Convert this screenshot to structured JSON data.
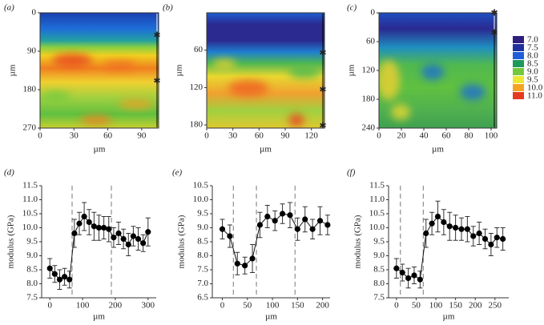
{
  "chart_data": [
    {
      "type": "heatmap",
      "panel": "(a)",
      "xlabel": "µm",
      "ylabel": "µm",
      "xlim": [
        0,
        105
      ],
      "xticks": [
        0,
        30,
        60,
        90
      ],
      "ylim": [
        270,
        0
      ],
      "yticks": [
        0,
        90,
        180,
        270
      ]
    },
    {
      "type": "heatmap",
      "panel": "(b)",
      "xlabel": "µm",
      "ylabel": "µm",
      "xlim": [
        0,
        135
      ],
      "xticks": [
        0,
        30,
        60,
        90,
        120
      ],
      "ylim": [
        185,
        0
      ],
      "yticks": [
        60,
        120,
        180
      ]
    },
    {
      "type": "heatmap",
      "panel": "(c)",
      "xlabel": "µm",
      "ylabel": "µm",
      "xlim": [
        0,
        105
      ],
      "xticks": [
        0,
        20,
        40,
        60,
        80,
        100
      ],
      "ylim": [
        240,
        0
      ],
      "yticks": [
        0,
        60,
        120,
        180,
        240
      ],
      "colorbar": [
        {
          "label": "7.0",
          "color": "#2e1f7e"
        },
        {
          "label": "7.5",
          "color": "#20309e"
        },
        {
          "label": "8.0",
          "color": "#1f5ed8"
        },
        {
          "label": "8.5",
          "color": "#1d9a5a"
        },
        {
          "label": "9.0",
          "color": "#74c83a"
        },
        {
          "label": "9.5",
          "color": "#ece832"
        },
        {
          "label": "10.0",
          "color": "#f4a422"
        },
        {
          "label": "11.0",
          "color": "#e63a1e"
        }
      ]
    },
    {
      "type": "line",
      "panel": "(d)",
      "xlabel": "µm",
      "ylabel": "modulus (GPa)",
      "xlim": [
        -25,
        325
      ],
      "xticks": [
        0,
        100,
        200,
        300
      ],
      "ylim": [
        7.5,
        11.5
      ],
      "yticks": [
        {
          "value": 7.5,
          "label": "7.5"
        },
        {
          "value": 8,
          "label": "8.0"
        },
        {
          "value": 8.5,
          "label": "8.5"
        },
        {
          "value": 9,
          "label": "9.0"
        },
        {
          "value": 9.5,
          "label": "9.5"
        },
        {
          "value": 10,
          "label": "10.0"
        },
        {
          "value": 10.5,
          "label": "10.5"
        },
        {
          "value": 11,
          "label": "11.0"
        },
        {
          "value": 11.5,
          "label": "11.5"
        }
      ],
      "vlines": [
        68,
        188
      ],
      "x": [
        0,
        15,
        30,
        45,
        60,
        75,
        90,
        105,
        120,
        135,
        150,
        165,
        180,
        195,
        210,
        225,
        240,
        255,
        270,
        285,
        300
      ],
      "values": [
        8.55,
        8.35,
        8.15,
        8.25,
        8.15,
        9.8,
        10.15,
        10.4,
        10.2,
        10.05,
        10.0,
        10.0,
        9.95,
        9.65,
        9.8,
        9.6,
        9.4,
        9.7,
        9.6,
        9.45,
        9.85
      ],
      "errors": [
        0.35,
        0.3,
        0.35,
        0.3,
        0.3,
        0.5,
        0.4,
        0.5,
        0.45,
        0.5,
        0.45,
        0.4,
        0.45,
        0.35,
        0.4,
        0.35,
        0.4,
        0.35,
        0.4,
        0.3,
        0.5
      ]
    },
    {
      "type": "line",
      "panel": "(e)",
      "xlabel": "µm",
      "ylabel": "modulus (GPa)",
      "xlim": [
        -20,
        215
      ],
      "xticks": [
        0,
        50,
        100,
        150,
        200
      ],
      "ylim": [
        6.5,
        10.5
      ],
      "yticks": [
        {
          "value": 6.5,
          "label": "6.5"
        },
        {
          "value": 7,
          "label": "7.0"
        },
        {
          "value": 7.5,
          "label": "7.5"
        },
        {
          "value": 8,
          "label": "8.0"
        },
        {
          "value": 8.5,
          "label": "8.5"
        },
        {
          "value": 9,
          "label": "9.0"
        },
        {
          "value": 9.5,
          "label": "9.5"
        },
        {
          "value": 10,
          "label": "10.0"
        },
        {
          "value": 10.5,
          "label": "10.5"
        }
      ],
      "vlines": [
        22,
        68,
        145
      ],
      "x": [
        0,
        15,
        30,
        45,
        60,
        75,
        90,
        105,
        120,
        135,
        150,
        165,
        180,
        195,
        210
      ],
      "values": [
        8.95,
        8.7,
        7.72,
        7.65,
        7.9,
        9.1,
        9.4,
        9.25,
        9.5,
        9.45,
        8.95,
        9.3,
        8.95,
        9.25,
        9.1
      ],
      "errors": [
        0.35,
        0.4,
        0.4,
        0.3,
        0.5,
        0.45,
        0.4,
        0.35,
        0.35,
        0.45,
        0.4,
        0.45,
        0.35,
        0.5,
        0.35
      ]
    },
    {
      "type": "line",
      "panel": "(f)",
      "xlabel": "µm",
      "ylabel": "modulus (GPa)",
      "xlim": [
        -20,
        285
      ],
      "xticks": [
        0,
        50,
        100,
        150,
        200,
        250
      ],
      "ylim": [
        7.5,
        11.5
      ],
      "yticks": [
        {
          "value": 7.5,
          "label": "7.5"
        },
        {
          "value": 8,
          "label": "8.0"
        },
        {
          "value": 8.5,
          "label": "8.5"
        },
        {
          "value": 9,
          "label": "9.0"
        },
        {
          "value": 9.5,
          "label": "9.5"
        },
        {
          "value": 10,
          "label": "10.0"
        },
        {
          "value": 10.5,
          "label": "10.5"
        },
        {
          "value": 11,
          "label": "11.0"
        },
        {
          "value": 11.5,
          "label": "11.5"
        }
      ],
      "vlines": [
        10,
        68
      ],
      "x": [
        0,
        15,
        30,
        45,
        60,
        75,
        90,
        105,
        120,
        135,
        150,
        165,
        180,
        195,
        210,
        225,
        240,
        255,
        270
      ],
      "values": [
        8.55,
        8.4,
        8.2,
        8.3,
        8.15,
        9.8,
        10.15,
        10.4,
        10.2,
        10.05,
        10.0,
        9.95,
        9.95,
        9.7,
        9.8,
        9.6,
        9.4,
        9.65,
        9.6
      ],
      "errors": [
        0.35,
        0.3,
        0.35,
        0.3,
        0.3,
        0.5,
        0.4,
        0.55,
        0.45,
        0.5,
        0.45,
        0.4,
        0.45,
        0.35,
        0.4,
        0.35,
        0.4,
        0.35,
        0.4
      ]
    }
  ]
}
